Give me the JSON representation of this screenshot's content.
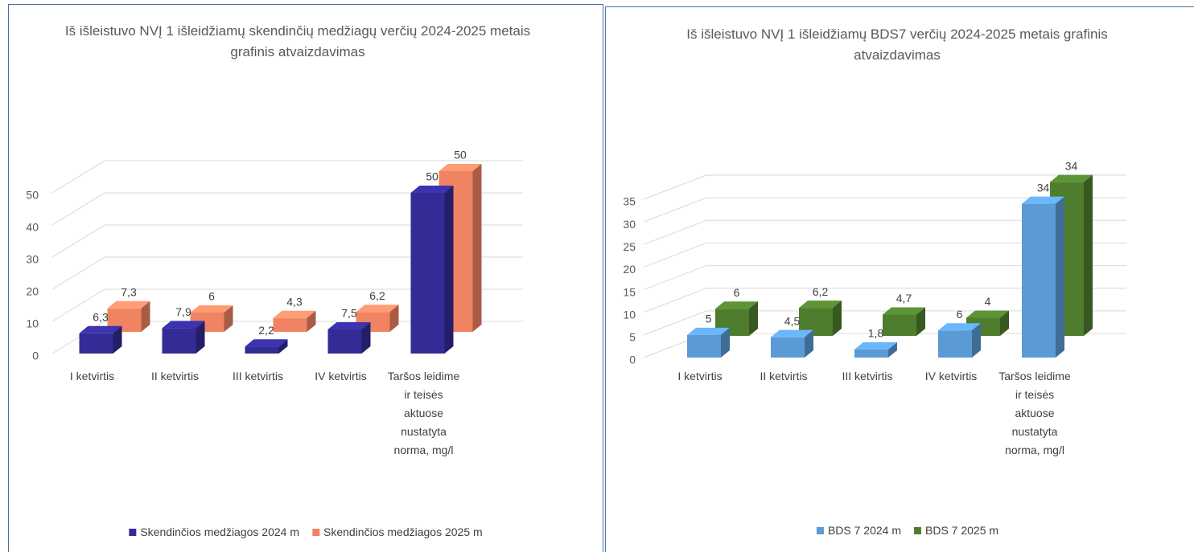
{
  "chart_data": [
    {
      "type": "bar3d",
      "title": "Iš išleistuvo NVĮ 1 išleidžiamų skendinčių medžiagų verčių 2024-2025 metais grafinis atvaizdavimas",
      "categories": [
        "I ketvirtis",
        "II ketvirtis",
        "III ketvirtis",
        "IV ketvirtis",
        "Taršos leidime ir teisės aktuose nustatyta norma, mg/l"
      ],
      "series": [
        {
          "name": "Skendinčios medžiagos 2024 m",
          "color": "#332b96",
          "values": [
            6.3,
            7.9,
            2.2,
            7.5,
            50
          ],
          "value_labels": [
            "6,3",
            "7,9",
            "2,2",
            "7,5",
            "50"
          ]
        },
        {
          "name": "Skendinčios medžiagos 2025 m",
          "color": "#f08462",
          "values": [
            7.3,
            6,
            4.3,
            6.2,
            50
          ],
          "value_labels": [
            "7,3",
            "6",
            "4,3",
            "6,2",
            "50"
          ]
        }
      ],
      "ylim": [
        0,
        50
      ],
      "yticks": [
        0,
        10,
        20,
        30,
        40,
        50
      ],
      "grid": true,
      "legend": "bottom"
    },
    {
      "type": "bar3d",
      "title": "Iš išleistuvo NVĮ 1 išleidžiamų BDS7 verčių 2024-2025 metais grafinis atvaizdavimas",
      "categories": [
        "I ketvirtis",
        "II ketvirtis",
        "III ketvirtis",
        "IV ketvirtis",
        "Taršos leidime ir teisės aktuose nustatyta norma, mg/l"
      ],
      "series": [
        {
          "name": "BDS 7 2024 m",
          "color": "#5b9bd5",
          "values": [
            5,
            4.5,
            1.8,
            6,
            34
          ],
          "value_labels": [
            "5",
            "4,5",
            "1,8",
            "6",
            "34"
          ]
        },
        {
          "name": "BDS 7 2025 m",
          "color": "#4e7d2e",
          "values": [
            6,
            6.2,
            4.7,
            4,
            34
          ],
          "value_labels": [
            "6",
            "6,2",
            "4,7",
            "4",
            "34"
          ]
        }
      ],
      "ylim": [
        0,
        35
      ],
      "yticks": [
        0,
        5,
        10,
        15,
        20,
        25,
        30,
        35
      ],
      "grid": true,
      "legend": "bottom"
    }
  ]
}
